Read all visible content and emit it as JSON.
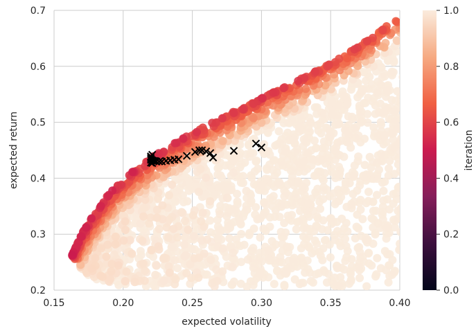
{
  "chart_data": {
    "type": "scatter",
    "title": "",
    "xlabel": "expected volatility",
    "ylabel": "expected return",
    "xlim": [
      0.15,
      0.4
    ],
    "ylim": [
      0.2,
      0.7
    ],
    "xticks": [
      "0.15",
      "0.20",
      "0.25",
      "0.30",
      "0.35",
      "0.40"
    ],
    "yticks": [
      "0.2",
      "0.3",
      "0.4",
      "0.5",
      "0.6",
      "0.7"
    ],
    "grid": true,
    "colorbar": {
      "label": "iteration",
      "range": [
        0.0,
        1.0
      ],
      "ticks": [
        "0.0",
        "0.2",
        "0.4",
        "0.6",
        "0.8",
        "1.0"
      ]
    },
    "frontier_upper": [
      [
        0.163,
        0.262
      ],
      [
        0.17,
        0.3
      ],
      [
        0.18,
        0.34
      ],
      [
        0.19,
        0.373
      ],
      [
        0.2,
        0.398
      ],
      [
        0.21,
        0.418
      ],
      [
        0.22,
        0.437
      ],
      [
        0.24,
        0.467
      ],
      [
        0.26,
        0.494
      ],
      [
        0.28,
        0.519
      ],
      [
        0.3,
        0.543
      ],
      [
        0.32,
        0.567
      ],
      [
        0.34,
        0.592
      ],
      [
        0.36,
        0.62
      ],
      [
        0.38,
        0.652
      ],
      [
        0.4,
        0.69
      ]
    ],
    "frontier_lower": [
      [
        0.163,
        0.262
      ],
      [
        0.17,
        0.235
      ],
      [
        0.18,
        0.215
      ],
      [
        0.2,
        0.205
      ],
      [
        0.22,
        0.204
      ],
      [
        0.25,
        0.205
      ],
      [
        0.3,
        0.205
      ],
      [
        0.35,
        0.205
      ],
      [
        0.4,
        0.205
      ]
    ],
    "random_portfolio_count": 2400,
    "optimizer_path": [
      [
        0.3,
        0.455
      ],
      [
        0.296,
        0.462
      ],
      [
        0.28,
        0.449
      ],
      [
        0.265,
        0.437
      ],
      [
        0.263,
        0.445
      ],
      [
        0.26,
        0.448
      ],
      [
        0.257,
        0.45
      ],
      [
        0.255,
        0.45
      ],
      [
        0.252,
        0.447
      ],
      [
        0.246,
        0.44
      ],
      [
        0.24,
        0.434
      ],
      [
        0.237,
        0.433
      ],
      [
        0.234,
        0.432
      ],
      [
        0.231,
        0.431
      ],
      [
        0.228,
        0.43
      ],
      [
        0.226,
        0.43
      ],
      [
        0.224,
        0.43
      ],
      [
        0.222,
        0.431
      ],
      [
        0.221,
        0.432
      ],
      [
        0.22,
        0.433
      ],
      [
        0.22,
        0.436
      ],
      [
        0.22,
        0.439
      ],
      [
        0.221,
        0.442
      ],
      [
        0.221,
        0.427
      ],
      [
        0.22,
        0.428
      ],
      [
        0.223,
        0.431
      ]
    ],
    "optimizer_marker": "x",
    "optimizer_color": "#000000",
    "colors": {
      "background": "#eaeaf2",
      "grid": "#cccccc",
      "colormap": [
        "#03051a",
        "#3c0f3d",
        "#851e5a",
        "#cb1b4f",
        "#f06043",
        "#f6aa82",
        "#faebdd"
      ]
    }
  }
}
